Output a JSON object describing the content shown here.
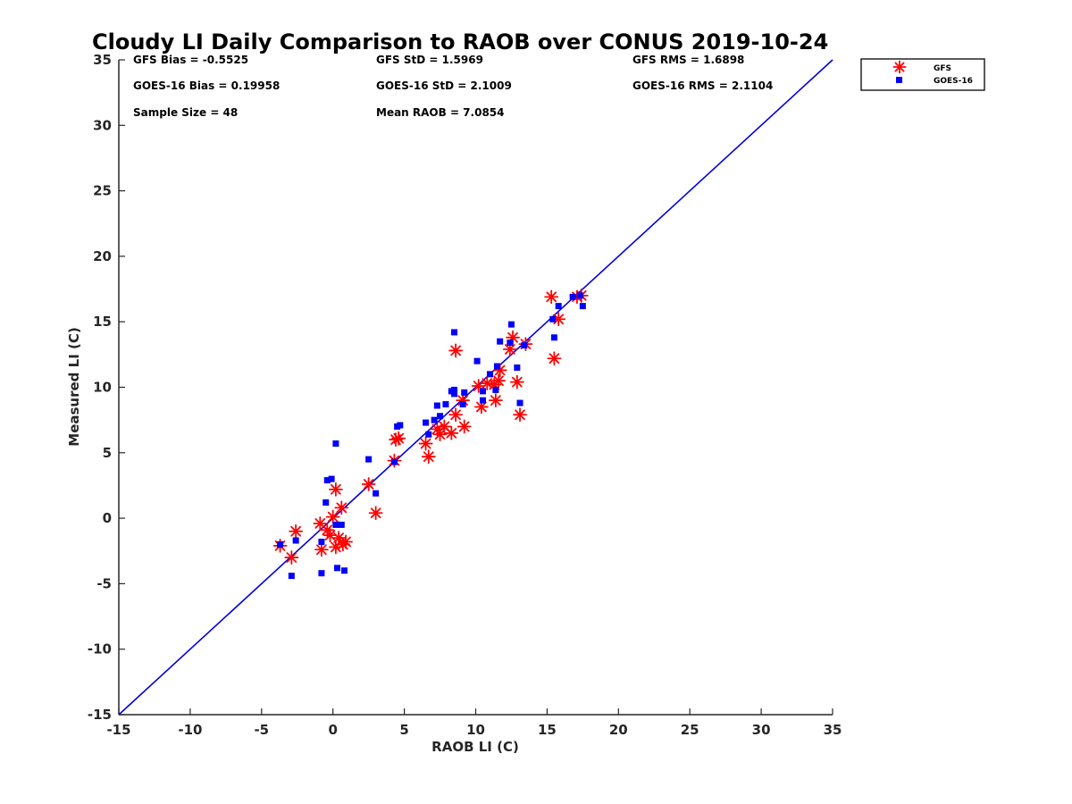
{
  "chart_data": {
    "type": "scatter",
    "title": "Cloudy LI Daily Comparison to RAOB over CONUS 2019-10-24",
    "xlabel": "RAOB LI (C)",
    "ylabel": "Measured LI (C)",
    "xlim": [
      -15,
      35
    ],
    "ylim": [
      -15,
      35
    ],
    "xticks": [
      -15,
      -10,
      -5,
      0,
      5,
      10,
      15,
      20,
      25,
      30,
      35
    ],
    "yticks": [
      -15,
      -10,
      -5,
      0,
      5,
      10,
      15,
      20,
      25,
      30,
      35
    ],
    "grid": false,
    "legend_position": "top-right, outside plot area",
    "reference_line": {
      "from": [
        -15,
        -15
      ],
      "to": [
        35,
        35
      ],
      "color": "#0000dd"
    },
    "stats": [
      [
        "GFS Bias = -0.5525",
        "GFS StD = 1.5969",
        "GFS RMS = 1.6898"
      ],
      [
        "GOES-16 Bias = 0.19958",
        "GOES-16 StD = 2.1009",
        "GOES-16 RMS = 2.1104"
      ],
      [
        "Sample Size = 48",
        "Mean RAOB = 7.0854",
        ""
      ]
    ],
    "series": [
      {
        "name": "GFS",
        "marker": "asterisk",
        "color": "#ff0000",
        "points": [
          [
            -3.7,
            -2.1
          ],
          [
            -2.9,
            -3.0
          ],
          [
            -2.6,
            -1.0
          ],
          [
            -0.9,
            -0.4
          ],
          [
            -0.8,
            -2.4
          ],
          [
            -0.4,
            -0.9
          ],
          [
            -0.2,
            -1.3
          ],
          [
            0.0,
            0.1
          ],
          [
            0.2,
            -2.2
          ],
          [
            0.2,
            2.2
          ],
          [
            0.4,
            -1.5
          ],
          [
            0.6,
            0.8
          ],
          [
            0.7,
            -2.0
          ],
          [
            0.9,
            -1.8
          ],
          [
            2.5,
            2.6
          ],
          [
            3.0,
            0.4
          ],
          [
            4.3,
            4.4
          ],
          [
            4.4,
            6.0
          ],
          [
            4.6,
            6.1
          ],
          [
            6.5,
            5.7
          ],
          [
            6.7,
            4.7
          ],
          [
            7.3,
            6.8
          ],
          [
            7.5,
            6.4
          ],
          [
            7.8,
            7.0
          ],
          [
            8.3,
            6.5
          ],
          [
            8.6,
            7.9
          ],
          [
            8.6,
            12.8
          ],
          [
            9.1,
            9.0
          ],
          [
            9.2,
            7.0
          ],
          [
            10.2,
            10.1
          ],
          [
            10.4,
            8.5
          ],
          [
            10.8,
            10.3
          ],
          [
            11.3,
            10.2
          ],
          [
            11.4,
            9.0
          ],
          [
            11.6,
            10.5
          ],
          [
            11.7,
            11.3
          ],
          [
            12.4,
            12.9
          ],
          [
            12.6,
            13.8
          ],
          [
            12.9,
            10.4
          ],
          [
            13.1,
            7.9
          ],
          [
            13.5,
            13.3
          ],
          [
            15.3,
            16.9
          ],
          [
            15.5,
            12.2
          ],
          [
            15.8,
            15.2
          ],
          [
            17.1,
            16.9
          ],
          [
            17.4,
            17.0
          ]
        ]
      },
      {
        "name": "GOES-16",
        "marker": "square",
        "color": "#0000ff",
        "points": [
          [
            -3.7,
            -2.0
          ],
          [
            -2.9,
            -4.4
          ],
          [
            -2.6,
            -1.7
          ],
          [
            -0.8,
            -4.2
          ],
          [
            -0.8,
            -1.8
          ],
          [
            -0.5,
            1.2
          ],
          [
            -0.4,
            2.9
          ],
          [
            -0.1,
            3.0
          ],
          [
            0.2,
            5.7
          ],
          [
            0.2,
            -0.5
          ],
          [
            0.3,
            -3.8
          ],
          [
            0.6,
            -0.5
          ],
          [
            0.8,
            -4.0
          ],
          [
            2.5,
            4.5
          ],
          [
            3.0,
            1.9
          ],
          [
            4.3,
            4.3
          ],
          [
            4.5,
            7.0
          ],
          [
            4.7,
            7.1
          ],
          [
            6.5,
            7.3
          ],
          [
            6.7,
            6.4
          ],
          [
            7.1,
            7.5
          ],
          [
            7.3,
            8.6
          ],
          [
            7.5,
            7.8
          ],
          [
            7.9,
            8.7
          ],
          [
            8.3,
            9.7
          ],
          [
            8.5,
            9.8
          ],
          [
            8.5,
            9.5
          ],
          [
            8.5,
            14.2
          ],
          [
            9.1,
            8.7
          ],
          [
            9.2,
            9.6
          ],
          [
            10.1,
            12.0
          ],
          [
            10.5,
            9.0
          ],
          [
            10.5,
            9.7
          ],
          [
            11.0,
            11.0
          ],
          [
            11.4,
            9.8
          ],
          [
            11.5,
            11.6
          ],
          [
            11.7,
            13.5
          ],
          [
            12.4,
            13.4
          ],
          [
            12.5,
            14.8
          ],
          [
            12.9,
            11.5
          ],
          [
            13.1,
            8.8
          ],
          [
            13.4,
            13.2
          ],
          [
            15.4,
            15.2
          ],
          [
            15.5,
            13.8
          ],
          [
            15.8,
            16.2
          ],
          [
            17.3,
            17.0
          ],
          [
            17.5,
            16.2
          ],
          [
            16.8,
            16.9
          ]
        ]
      }
    ]
  }
}
